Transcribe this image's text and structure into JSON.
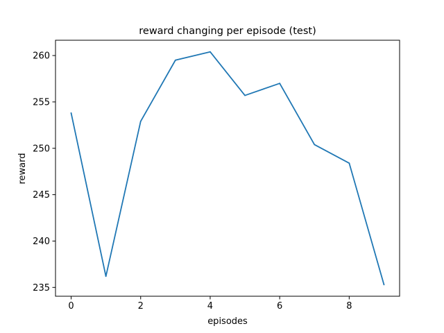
{
  "chart_data": {
    "type": "line",
    "title": "reward changing per episode (test)",
    "xlabel": "episodes",
    "ylabel": "reward",
    "x": [
      0,
      1,
      2,
      3,
      4,
      5,
      6,
      7,
      8,
      9
    ],
    "series": [
      {
        "values": [
          253.8,
          236.2,
          252.9,
          259.5,
          260.4,
          255.7,
          257.0,
          250.4,
          248.4,
          235.3
        ],
        "color": "#1f77b4"
      }
    ],
    "xlim": [
      -0.45,
      9.45
    ],
    "ylim": [
      234.05,
      261.65
    ],
    "xticks": [
      0,
      2,
      4,
      6,
      8
    ],
    "yticks": [
      235,
      240,
      245,
      250,
      255,
      260
    ],
    "grid": false,
    "legend": "none"
  }
}
